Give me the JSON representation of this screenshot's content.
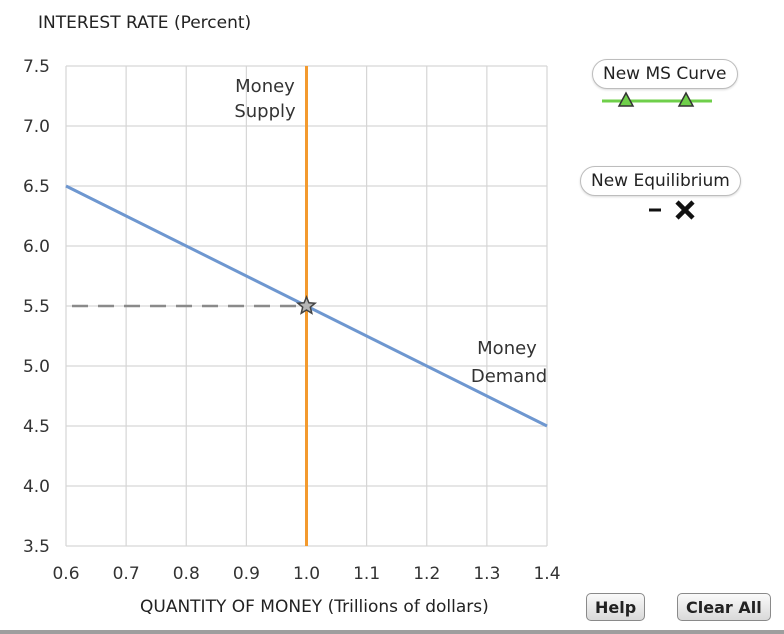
{
  "chart_data": {
    "type": "line",
    "ylabel": "INTEREST RATE (Percent)",
    "xlabel": "QUANTITY OF MONEY (Trillions of dollars)",
    "xlim": [
      0.6,
      1.4
    ],
    "ylim": [
      3.5,
      7.5
    ],
    "x_ticks": [
      "0.6",
      "0.7",
      "0.8",
      "0.9",
      "1.0",
      "1.1",
      "1.2",
      "1.3",
      "1.4"
    ],
    "y_ticks": [
      "3.5",
      "4.0",
      "4.5",
      "5.0",
      "5.5",
      "6.0",
      "6.5",
      "7.0",
      "7.5"
    ],
    "grid": true,
    "series": [
      {
        "name": "Money Demand",
        "label_lines": [
          "Money",
          "Demand"
        ],
        "color": "#6e97d0",
        "x": [
          0.6,
          1.4
        ],
        "y": [
          6.5,
          4.5
        ]
      },
      {
        "name": "Money Supply",
        "label_lines": [
          "Money",
          "Supply"
        ],
        "color": "#f39a2e",
        "x": [
          1.0,
          1.0
        ],
        "y": [
          3.5,
          7.5
        ]
      }
    ],
    "equilibrium": {
      "x": 1.0,
      "y": 5.5,
      "marker": "star",
      "guide": "dashed"
    }
  },
  "tools": [
    {
      "label": "New MS Curve",
      "icon": "green-triangle-line-icon",
      "color": "#6fcf4a"
    },
    {
      "label": "New Equilibrium",
      "icon": "x-marker-icon",
      "color": "#111111"
    }
  ],
  "buttons": {
    "help": "Help",
    "clear_all": "Clear All"
  }
}
